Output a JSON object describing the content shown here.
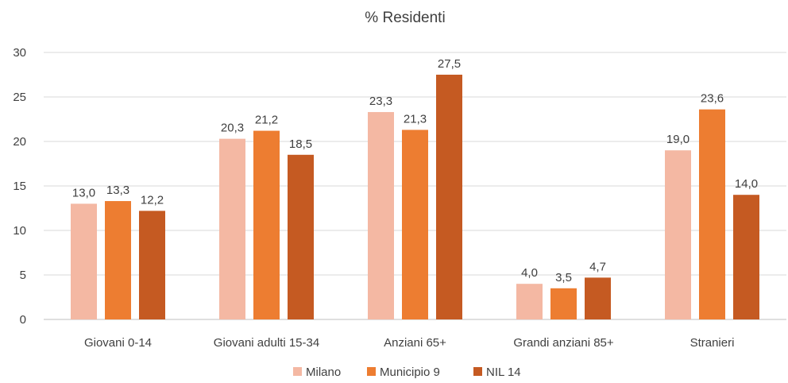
{
  "chart_data": {
    "type": "bar",
    "title": "% Residenti",
    "xlabel": "",
    "ylabel": "",
    "categories": [
      "Giovani 0-14",
      "Giovani adulti 15-34",
      "Anziani 65+",
      "Grandi anziani 85+",
      "Stranieri"
    ],
    "series": [
      {
        "name": "Milano",
        "values": [
          13.0,
          20.3,
          23.3,
          4.0,
          19.0
        ],
        "labels": [
          "13,0",
          "20,3",
          "23,3",
          "4,0",
          "19,0"
        ],
        "color": "#F4B8A3"
      },
      {
        "name": "Municipio 9",
        "values": [
          13.3,
          21.2,
          21.3,
          3.5,
          23.6
        ],
        "labels": [
          "13,3",
          "21,2",
          "21,3",
          "3,5",
          "23,6"
        ],
        "color": "#ED7D31"
      },
      {
        "name": "NIL 14",
        "values": [
          12.2,
          18.5,
          27.5,
          4.7,
          14.0
        ],
        "labels": [
          "12,2",
          "18,5",
          "27,5",
          "4,7",
          "14,0"
        ],
        "color": "#C55A22"
      }
    ],
    "ylim": [
      0,
      30
    ],
    "yticks": [
      0,
      5,
      10,
      15,
      20,
      25,
      30
    ],
    "grid": true,
    "legend_position": "bottom"
  }
}
